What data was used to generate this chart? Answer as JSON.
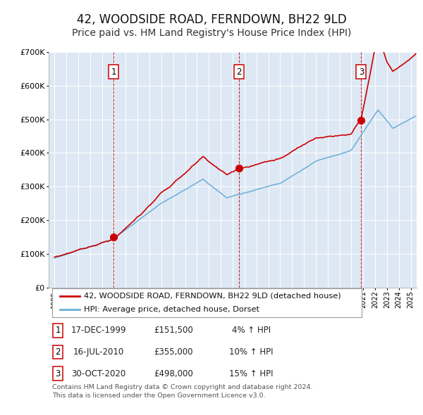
{
  "title": "42, WOODSIDE ROAD, FERNDOWN, BH22 9LD",
  "subtitle": "Price paid vs. HM Land Registry's House Price Index (HPI)",
  "title_fontsize": 12,
  "subtitle_fontsize": 10,
  "background_color": "#ffffff",
  "plot_bg_color": "#dde8f4",
  "grid_color": "#ffffff",
  "ylabel_vals": [
    0,
    100000,
    200000,
    300000,
    400000,
    500000,
    600000,
    700000
  ],
  "ylabel_labels": [
    "£0",
    "£100K",
    "£200K",
    "£300K",
    "£400K",
    "£500K",
    "£600K",
    "£700K"
  ],
  "hpi_color": "#6aaed6",
  "price_color": "#cc0000",
  "sale_marker_color": "#cc0000",
  "sale_marker_size": 7,
  "dashed_line_color": "#cc0000",
  "legend_label_price": "42, WOODSIDE ROAD, FERNDOWN, BH22 9LD (detached house)",
  "legend_label_hpi": "HPI: Average price, detached house, Dorset",
  "sales": [
    {
      "date_str": "17-DEC-1999",
      "date_x": 1999.96,
      "price": 151500,
      "label": "1"
    },
    {
      "date_str": "16-JUL-2010",
      "date_x": 2010.54,
      "price": 355000,
      "label": "2"
    },
    {
      "date_str": "30-OCT-2020",
      "date_x": 2020.83,
      "price": 498000,
      "label": "3"
    }
  ],
  "table_rows": [
    {
      "num": "1",
      "date": "17-DEC-1999",
      "price": "£151,500",
      "hpi": "4% ↑ HPI"
    },
    {
      "num": "2",
      "date": "16-JUL-2010",
      "price": "£355,000",
      "hpi": "10% ↑ HPI"
    },
    {
      "num": "3",
      "date": "30-OCT-2020",
      "price": "£498,000",
      "hpi": "15% ↑ HPI"
    }
  ],
  "footer": "Contains HM Land Registry data © Crown copyright and database right 2024.\nThis data is licensed under the Open Government Licence v3.0.",
  "xmin": 1994.5,
  "xmax": 2025.5,
  "ymin": 0,
  "ymax": 700000
}
